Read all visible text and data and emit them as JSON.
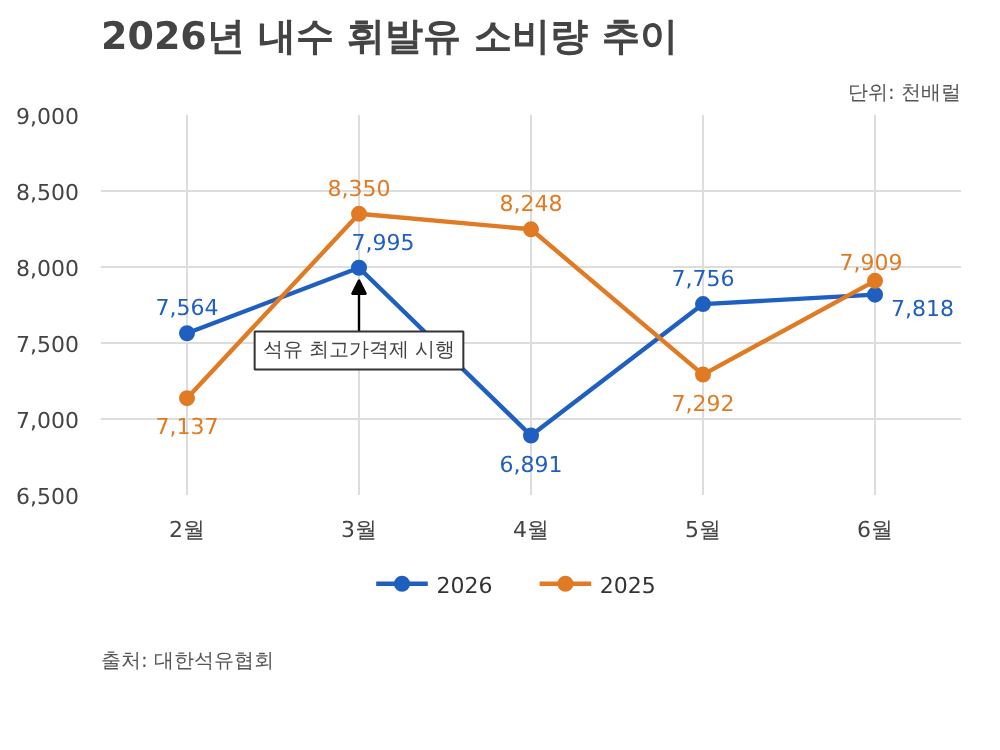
{
  "chart_data": {
    "type": "line",
    "title": "2026년 내수 휘발유 소비량 추이",
    "subtitle": "단위: 천배럴",
    "categories": [
      "2월",
      "3월",
      "4월",
      "5월",
      "6월"
    ],
    "series": [
      {
        "name": "2026",
        "color": "#1f5fbf",
        "values": [
          7564,
          7995,
          6891,
          7756,
          7818
        ],
        "value_labels": [
          "7,564",
          "7,995",
          "6,891",
          "7,756",
          "7,818"
        ]
      },
      {
        "name": "2025",
        "color": "#e07b24",
        "values": [
          7137,
          8350,
          8248,
          7292,
          7909
        ],
        "value_labels": [
          "7,137",
          "8,350",
          "8,248",
          "7,292",
          "7,909"
        ]
      }
    ],
    "ylim": [
      6500,
      9000
    ],
    "yticks": [
      {
        "value": 6500,
        "label": "6,500"
      },
      {
        "value": 7000,
        "label": "7,000"
      },
      {
        "value": 7500,
        "label": "7,500"
      },
      {
        "value": 8000,
        "label": "8,000"
      },
      {
        "value": 8500,
        "label": "8,500"
      },
      {
        "value": 9000,
        "label": "9,000"
      }
    ],
    "grid": true,
    "legend": "bottom",
    "marker": "circle",
    "line_style": "solid",
    "annotations": [
      {
        "text": "석유 최고가격제 시행",
        "x": "3월",
        "y": 7995
      },
      "출처: 대한석유협회"
    ]
  }
}
